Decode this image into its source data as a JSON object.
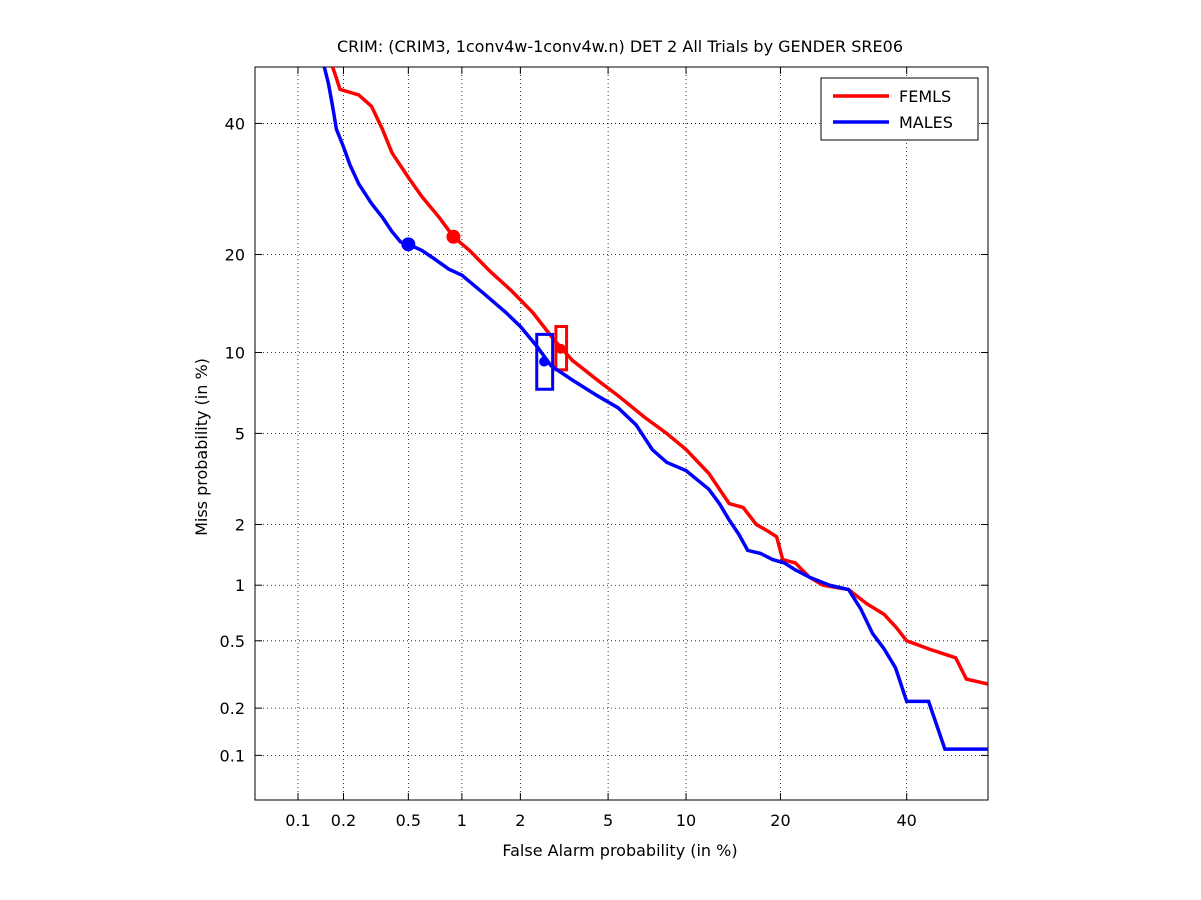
{
  "chart_data": {
    "type": "line",
    "title": "CRIM: (CRIM3, 1conv4w-1conv4w.n) DET 2 All Trials by GENDER SRE06",
    "xlabel": "False Alarm probability (in %)",
    "ylabel": "Miss probability (in %)",
    "x_scale": "probit",
    "y_scale": "probit",
    "xlim": [
      0.05,
      55
    ],
    "ylim": [
      0.05,
      50
    ],
    "grid": true,
    "legend_position": "top-right",
    "x_ticks": [
      0.1,
      0.2,
      0.5,
      1,
      2,
      5,
      10,
      20,
      40
    ],
    "x_tick_labels": [
      "0.1",
      "0.2",
      "0.5",
      "1",
      "2",
      "5",
      "10",
      "20",
      "40"
    ],
    "y_ticks": [
      0.1,
      0.2,
      0.5,
      1,
      2,
      5,
      10,
      20,
      40
    ],
    "y_tick_labels": [
      "0.1",
      "0.2",
      "0.5",
      "1",
      "2",
      "5",
      "10",
      "20",
      "40"
    ],
    "series": [
      {
        "name": "FEMLS",
        "color": "#ff0000",
        "points": [
          [
            0.17,
            50
          ],
          [
            0.18,
            48
          ],
          [
            0.19,
            46
          ],
          [
            0.25,
            45
          ],
          [
            0.3,
            43
          ],
          [
            0.35,
            39
          ],
          [
            0.4,
            35
          ],
          [
            0.5,
            31
          ],
          [
            0.6,
            28
          ],
          [
            0.75,
            25
          ],
          [
            0.9,
            22.3
          ],
          [
            1.1,
            20.5
          ],
          [
            1.4,
            18
          ],
          [
            1.8,
            15.8
          ],
          [
            2.3,
            13.5
          ],
          [
            2.9,
            11.0
          ],
          [
            3.5,
            9.4
          ],
          [
            4.5,
            8.0
          ],
          [
            5.5,
            7.0
          ],
          [
            7.0,
            5.8
          ],
          [
            8.5,
            5.0
          ],
          [
            10,
            4.3
          ],
          [
            12,
            3.4
          ],
          [
            14,
            2.5
          ],
          [
            15.5,
            2.4
          ],
          [
            17,
            2.0
          ],
          [
            18.5,
            1.85
          ],
          [
            19.5,
            1.75
          ],
          [
            20.3,
            1.35
          ],
          [
            22,
            1.3
          ],
          [
            24,
            1.1
          ],
          [
            26,
            1.0
          ],
          [
            30,
            0.95
          ],
          [
            33,
            0.8
          ],
          [
            36,
            0.7
          ],
          [
            38,
            0.6
          ],
          [
            40,
            0.5
          ],
          [
            44,
            0.45
          ],
          [
            49,
            0.4
          ],
          [
            51,
            0.3
          ],
          [
            55,
            0.28
          ]
        ],
        "actual_point": [
          0.9,
          22.3
        ],
        "min_point": [
          3.1,
          10.3
        ],
        "min_box": {
          "x": [
            2.95,
            3.3
          ],
          "y": [
            8.7,
            12.2
          ]
        }
      },
      {
        "name": "MALES",
        "color": "#0000ff",
        "points": [
          [
            0.15,
            50
          ],
          [
            0.16,
            47
          ],
          [
            0.17,
            43
          ],
          [
            0.18,
            39
          ],
          [
            0.2,
            36
          ],
          [
            0.22,
            33
          ],
          [
            0.25,
            30
          ],
          [
            0.3,
            27
          ],
          [
            0.35,
            25
          ],
          [
            0.4,
            23
          ],
          [
            0.45,
            21.6
          ],
          [
            0.5,
            21.3
          ],
          [
            0.6,
            20.5
          ],
          [
            0.7,
            19.5
          ],
          [
            0.85,
            18.2
          ],
          [
            1.0,
            17.5
          ],
          [
            1.3,
            15.5
          ],
          [
            1.7,
            13.5
          ],
          [
            2.0,
            12.2
          ],
          [
            2.4,
            10.5
          ],
          [
            2.8,
            9.0
          ],
          [
            3.5,
            8.0
          ],
          [
            4.5,
            7.0
          ],
          [
            5.5,
            6.3
          ],
          [
            6.5,
            5.4
          ],
          [
            7.5,
            4.3
          ],
          [
            8.5,
            3.8
          ],
          [
            10,
            3.5
          ],
          [
            12,
            2.9
          ],
          [
            13,
            2.5
          ],
          [
            14,
            2.1
          ],
          [
            15,
            1.8
          ],
          [
            16,
            1.5
          ],
          [
            17.5,
            1.45
          ],
          [
            19,
            1.35
          ],
          [
            20.5,
            1.3
          ],
          [
            22,
            1.2
          ],
          [
            24,
            1.1
          ],
          [
            27,
            1.0
          ],
          [
            30,
            0.95
          ],
          [
            32,
            0.75
          ],
          [
            34,
            0.55
          ],
          [
            36,
            0.45
          ],
          [
            38,
            0.35
          ],
          [
            40,
            0.22
          ],
          [
            44,
            0.22
          ],
          [
            47,
            0.11
          ],
          [
            55,
            0.11
          ]
        ],
        "actual_point": [
          0.5,
          21.3
        ],
        "min_point": [
          2.6,
          9.3
        ],
        "min_box": {
          "x": [
            2.4,
            2.85
          ],
          "y": [
            7.4,
            11.5
          ]
        }
      }
    ]
  }
}
